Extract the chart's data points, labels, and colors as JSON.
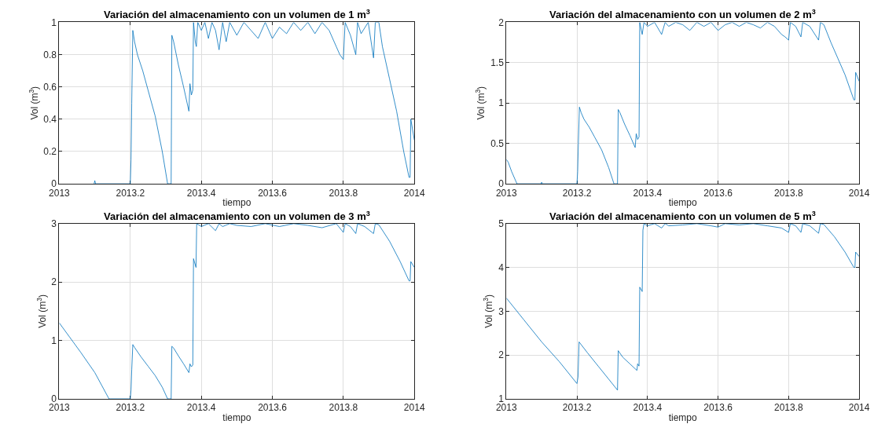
{
  "chart_data": [
    {
      "type": "line",
      "title": "Variación del almacenamiento con un volumen de 1 m$^{3}$",
      "xlabel": "tiempo",
      "ylabel": "Vol (m$^{3}$)",
      "xlim": [
        2013,
        2014
      ],
      "ylim": [
        0,
        1
      ],
      "xticks": [
        2013,
        2013.2,
        2013.4,
        2013.6,
        2013.8,
        2014
      ],
      "yticks": [
        0,
        0.2,
        0.4,
        0.6,
        0.8,
        1
      ],
      "grid": true,
      "series": [
        {
          "color": "#0072bd",
          "x": [
            2013.098,
            2013.1,
            2013.102,
            2013.2,
            2013.202,
            2013.204,
            2013.207,
            2013.212,
            2013.22,
            2013.235,
            2013.25,
            2013.27,
            2013.29,
            2013.305,
            2013.315,
            2013.317,
            2013.322,
            2013.335,
            2013.35,
            2013.365,
            2013.368,
            2013.372,
            2013.376,
            2013.378,
            2013.383,
            2013.386,
            2013.39,
            2013.4,
            2013.41,
            2013.42,
            2013.43,
            2013.44,
            2013.45,
            2013.46,
            2013.47,
            2013.48,
            2013.5,
            2013.52,
            2013.54,
            2013.56,
            2013.58,
            2013.6,
            2013.62,
            2013.64,
            2013.66,
            2013.68,
            2013.7,
            2013.72,
            2013.74,
            2013.76,
            2013.78,
            2013.79,
            2013.8,
            2013.805,
            2013.82,
            2013.835,
            2013.84,
            2013.85,
            2013.87,
            2013.885,
            2013.89,
            2013.9,
            2013.91,
            2013.93,
            2013.95,
            2013.97,
            2013.985,
            2013.988,
            2013.99,
            2014
          ],
          "values": [
            0,
            0.02,
            0,
            0,
            0.15,
            0.5,
            0.95,
            0.88,
            0.8,
            0.7,
            0.58,
            0.42,
            0.2,
            0,
            0,
            0.92,
            0.88,
            0.74,
            0.6,
            0.45,
            0.62,
            0.55,
            0.58,
            1,
            0.88,
            0.85,
            1,
            0.95,
            1,
            0.9,
            1,
            0.95,
            0.83,
            1,
            0.88,
            1,
            0.92,
            1,
            0.95,
            0.9,
            1,
            0.9,
            0.97,
            0.93,
            1,
            0.95,
            1,
            0.93,
            1,
            0.95,
            0.85,
            0.8,
            0.77,
            1,
            0.92,
            0.8,
            1,
            0.93,
            1,
            0.78,
            1,
            1,
            0.85,
            0.65,
            0.45,
            0.2,
            0.04,
            0.04,
            0.4,
            0.27
          ]
        }
      ]
    },
    {
      "type": "line",
      "title": "Variación del almacenamiento con un volumen de 2 m$^{3}$",
      "xlabel": "tiempo",
      "ylabel": "Vol (m$^{3}$)",
      "xlim": [
        2013,
        2014
      ],
      "ylim": [
        0,
        2
      ],
      "xticks": [
        2013,
        2013.2,
        2013.4,
        2013.6,
        2013.8,
        2014
      ],
      "yticks": [
        0,
        0.5,
        1,
        1.5,
        2
      ],
      "grid": true,
      "series": [
        {
          "color": "#0072bd",
          "x": [
            2013,
            2013.005,
            2013.015,
            2013.03,
            2013.098,
            2013.1,
            2013.102,
            2013.2,
            2013.202,
            2013.204,
            2013.207,
            2013.212,
            2013.22,
            2013.235,
            2013.25,
            2013.27,
            2013.29,
            2013.305,
            2013.315,
            2013.317,
            2013.322,
            2013.335,
            2013.35,
            2013.365,
            2013.368,
            2013.372,
            2013.376,
            2013.378,
            2013.385,
            2013.39,
            2013.4,
            2013.42,
            2013.44,
            2013.45,
            2013.46,
            2013.48,
            2013.5,
            2013.52,
            2013.54,
            2013.56,
            2013.58,
            2013.6,
            2013.62,
            2013.64,
            2013.66,
            2013.68,
            2013.7,
            2013.72,
            2013.74,
            2013.76,
            2013.78,
            2013.79,
            2013.8,
            2013.805,
            2013.82,
            2013.835,
            2013.84,
            2013.86,
            2013.885,
            2013.89,
            2013.9,
            2013.92,
            2013.94,
            2013.96,
            2013.985,
            2013.988,
            2013.99,
            2014
          ],
          "values": [
            0.3,
            0.27,
            0.15,
            0,
            0,
            0.02,
            0,
            0,
            0.15,
            0.5,
            0.95,
            0.88,
            0.8,
            0.7,
            0.58,
            0.42,
            0.2,
            0,
            0,
            0.92,
            0.88,
            0.74,
            0.6,
            0.45,
            0.62,
            0.55,
            0.58,
            2,
            1.85,
            2,
            1.95,
            2,
            1.85,
            2,
            1.95,
            2,
            1.97,
            1.9,
            2,
            1.95,
            2,
            1.9,
            1.97,
            2,
            1.95,
            2,
            1.97,
            1.93,
            2,
            1.95,
            1.85,
            1.82,
            1.78,
            2,
            1.95,
            1.82,
            2,
            1.95,
            1.78,
            2,
            1.97,
            1.75,
            1.55,
            1.35,
            1.04,
            1.04,
            1.38,
            1.27
          ]
        }
      ]
    },
    {
      "type": "line",
      "title": "Variación del almacenamiento con un volumen de 3 m$^{3}$",
      "xlabel": "tiempo",
      "ylabel": "Vol (m$^{3}$)",
      "xlim": [
        2013,
        2014
      ],
      "ylim": [
        0,
        3
      ],
      "xticks": [
        2013,
        2013.2,
        2013.4,
        2013.6,
        2013.8,
        2014
      ],
      "yticks": [
        0,
        1,
        2,
        3
      ],
      "grid": true,
      "series": [
        {
          "color": "#0072bd",
          "x": [
            2013,
            2013.03,
            2013.06,
            2013.1,
            2013.14,
            2013.2,
            2013.202,
            2013.204,
            2013.207,
            2013.212,
            2013.23,
            2013.25,
            2013.27,
            2013.29,
            2013.305,
            2013.315,
            2013.317,
            2013.322,
            2013.335,
            2013.35,
            2013.365,
            2013.368,
            2013.372,
            2013.376,
            2013.378,
            2013.385,
            2013.387,
            2013.4,
            2013.42,
            2013.44,
            2013.45,
            2013.46,
            2013.48,
            2013.5,
            2013.54,
            2013.58,
            2013.62,
            2013.66,
            2013.7,
            2013.74,
            2013.78,
            2013.8,
            2013.805,
            2013.82,
            2013.835,
            2013.84,
            2013.86,
            2013.885,
            2013.89,
            2013.9,
            2013.93,
            2013.96,
            2013.985,
            2013.988,
            2013.99,
            2014
          ],
          "values": [
            1.3,
            1.05,
            0.8,
            0.45,
            0,
            0,
            0.15,
            0.5,
            0.93,
            0.88,
            0.72,
            0.56,
            0.4,
            0.2,
            0,
            0,
            0.9,
            0.87,
            0.74,
            0.6,
            0.45,
            0.6,
            0.55,
            0.58,
            2.4,
            2.25,
            3,
            2.95,
            3,
            2.88,
            3,
            2.95,
            3,
            2.97,
            2.95,
            3,
            2.95,
            3,
            2.97,
            2.93,
            3,
            2.85,
            3,
            2.95,
            2.83,
            3,
            2.95,
            2.83,
            3,
            2.98,
            2.7,
            2.35,
            2.02,
            2.02,
            2.35,
            2.25
          ]
        }
      ]
    },
    {
      "type": "line",
      "title": "Variación del almacenamiento con un volumen de 5 m$^{3}$",
      "xlabel": "tiempo",
      "ylabel": "Vol (m$^{3}$)",
      "xlim": [
        2013,
        2014
      ],
      "ylim": [
        1,
        5
      ],
      "xticks": [
        2013,
        2013.2,
        2013.4,
        2013.6,
        2013.8,
        2014
      ],
      "yticks": [
        1,
        2,
        3,
        4,
        5
      ],
      "grid": true,
      "series": [
        {
          "color": "#0072bd",
          "x": [
            2013,
            2013.05,
            2013.1,
            2013.15,
            2013.2,
            2013.203,
            2013.206,
            2013.23,
            2013.26,
            2013.29,
            2013.315,
            2013.317,
            2013.33,
            2013.35,
            2013.37,
            2013.372,
            2013.376,
            2013.378,
            2013.385,
            2013.387,
            2013.39,
            2013.4,
            2013.42,
            2013.44,
            2013.45,
            2013.46,
            2013.5,
            2013.54,
            2013.58,
            2013.6,
            2013.62,
            2013.66,
            2013.7,
            2013.74,
            2013.78,
            2013.8,
            2013.805,
            2013.82,
            2013.835,
            2013.84,
            2013.86,
            2013.885,
            2013.89,
            2013.9,
            2013.93,
            2013.96,
            2013.985,
            2013.988,
            2013.99,
            2014
          ],
          "values": [
            3.3,
            2.8,
            2.3,
            1.85,
            1.35,
            1.5,
            2.3,
            2.05,
            1.75,
            1.45,
            1.2,
            2.1,
            1.95,
            1.8,
            1.65,
            1.8,
            1.75,
            3.55,
            3.45,
            4.85,
            5,
            4.95,
            5,
            4.9,
            5,
            4.95,
            4.97,
            5,
            4.95,
            4.92,
            5,
            4.97,
            5,
            4.95,
            4.9,
            4.8,
            5,
            4.95,
            4.8,
            5,
            4.95,
            4.78,
            5,
            4.98,
            4.7,
            4.35,
            4.0,
            4.0,
            4.35,
            4.25
          ]
        }
      ]
    }
  ]
}
